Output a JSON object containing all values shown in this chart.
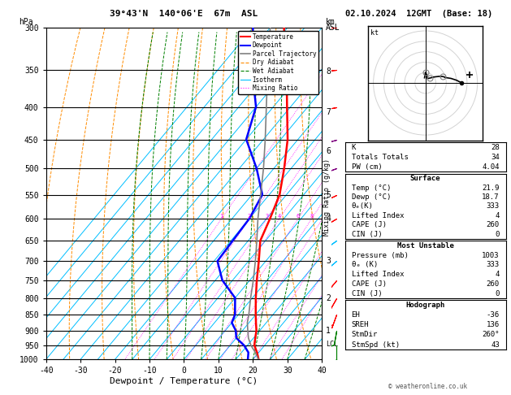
{
  "title_left": "39°43'N  140°06'E  67m  ASL",
  "title_right": "02.10.2024  12GMT  (Base: 18)",
  "xlabel": "Dewpoint / Temperature (°C)",
  "pressure_levels": [
    300,
    350,
    400,
    450,
    500,
    550,
    600,
    650,
    700,
    750,
    800,
    850,
    900,
    950,
    1000
  ],
  "xlim": [
    -40,
    40
  ],
  "temp_profile": {
    "pressure": [
      1003,
      975,
      950,
      925,
      900,
      875,
      850,
      800,
      750,
      700,
      650,
      600,
      550,
      500,
      450,
      400,
      350,
      300
    ],
    "temperature": [
      21.9,
      19.5,
      17.0,
      15.5,
      14.0,
      12.0,
      10.0,
      6.0,
      2.0,
      -2.0,
      -6.5,
      -9.0,
      -12.0,
      -17.0,
      -23.0,
      -31.0,
      -40.0,
      -51.0
    ]
  },
  "dewp_profile": {
    "pressure": [
      1003,
      975,
      950,
      925,
      900,
      875,
      850,
      800,
      750,
      700,
      650,
      600,
      550,
      500,
      450,
      400,
      350,
      300
    ],
    "temperature": [
      18.7,
      17.0,
      14.0,
      10.0,
      8.0,
      5.0,
      4.0,
      0.0,
      -8.0,
      -14.0,
      -14.5,
      -15.0,
      -17.0,
      -25.0,
      -35.0,
      -40.0,
      -50.0,
      -60.0
    ]
  },
  "parcel_profile": {
    "pressure": [
      1003,
      975,
      950,
      925,
      900,
      875,
      850,
      800,
      750,
      700,
      650,
      600,
      550,
      500,
      450,
      400,
      350,
      300
    ],
    "temperature": [
      21.9,
      19.0,
      16.0,
      13.5,
      11.5,
      9.5,
      8.0,
      4.5,
      1.0,
      -3.0,
      -7.5,
      -12.5,
      -17.5,
      -23.0,
      -29.5,
      -37.0,
      -45.5,
      -55.0
    ]
  },
  "temp_color": "#ff0000",
  "dewp_color": "#0000ff",
  "parcel_color": "#808080",
  "dry_adiabat_color": "#ff8c00",
  "wet_adiabat_color": "#008000",
  "isotherm_color": "#00bfff",
  "mixing_ratio_color": "#ff00ff",
  "mixing_ratios": [
    1,
    2,
    3,
    4,
    6,
    8,
    10,
    15,
    20,
    25
  ],
  "km_labels": [
    1,
    2,
    3,
    4,
    5,
    6,
    7,
    8
  ],
  "km_pressures": [
    900,
    800,
    700,
    600,
    550,
    470,
    408,
    352
  ],
  "lcl_pressure": 945,
  "wind_p": [
    300,
    350,
    400,
    450,
    500,
    550,
    600,
    650,
    700,
    750,
    800,
    850,
    900,
    950,
    1000
  ],
  "wind_spd": [
    35,
    30,
    25,
    20,
    18,
    15,
    12,
    10,
    8,
    6,
    5,
    5,
    8,
    10,
    5
  ],
  "wind_dir": [
    270,
    265,
    260,
    255,
    250,
    245,
    240,
    235,
    230,
    220,
    210,
    200,
    190,
    180,
    170
  ],
  "wind_colors": [
    "#ff0000",
    "#ff0000",
    "#ff0000",
    "#800080",
    "#800080",
    "#ff0000",
    "#ff0000",
    "#00bfff",
    "#00bfff",
    "#ff0000",
    "#ff0000",
    "#ff0000",
    "#008000",
    "#008000",
    "#008000"
  ],
  "indices": {
    "K": 28,
    "Totals_Totals": 34,
    "PW_cm": 4.04,
    "Surface_Temp": 21.9,
    "Surface_Dewp": 18.7,
    "Surface_theta_e": 333,
    "Surface_LI": 4,
    "Surface_CAPE": 260,
    "Surface_CIN": 0,
    "MU_Pressure": 1003,
    "MU_theta_e": 333,
    "MU_LI": 4,
    "MU_CAPE": 260,
    "MU_CIN": 0,
    "Hodograph_EH": -36,
    "Hodograph_SREH": 136,
    "Hodograph_StmDir": 260,
    "Hodograph_StmSpd": 43
  },
  "background_color": "#ffffff"
}
